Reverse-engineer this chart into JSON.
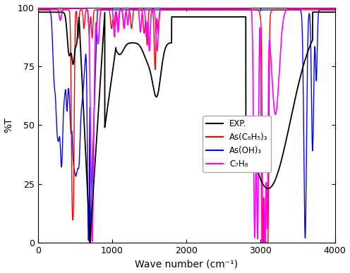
{
  "title": "",
  "xlabel": "Wave number (cm⁻¹)",
  "ylabel": "%T",
  "xlim": [
    0,
    4000
  ],
  "ylim": [
    0,
    100
  ],
  "xticks": [
    0,
    1000,
    2000,
    3000,
    4000
  ],
  "yticks": [
    0,
    25,
    50,
    75,
    100
  ],
  "colors": {
    "EXP": "#000000",
    "As_C6H5_3": "#ff0000",
    "As_OH_3": "#0000ff",
    "C7H8": "#ff00ff"
  },
  "legend": {
    "EXP": "EXP.",
    "As_C6H5_3": "As(C₆H₅)₃",
    "As_OH_3": "As(OH)₃",
    "C7H8": "C₇H₈"
  },
  "background": "#ffffff",
  "figsize": [
    4.96,
    3.87
  ],
  "dpi": 100
}
